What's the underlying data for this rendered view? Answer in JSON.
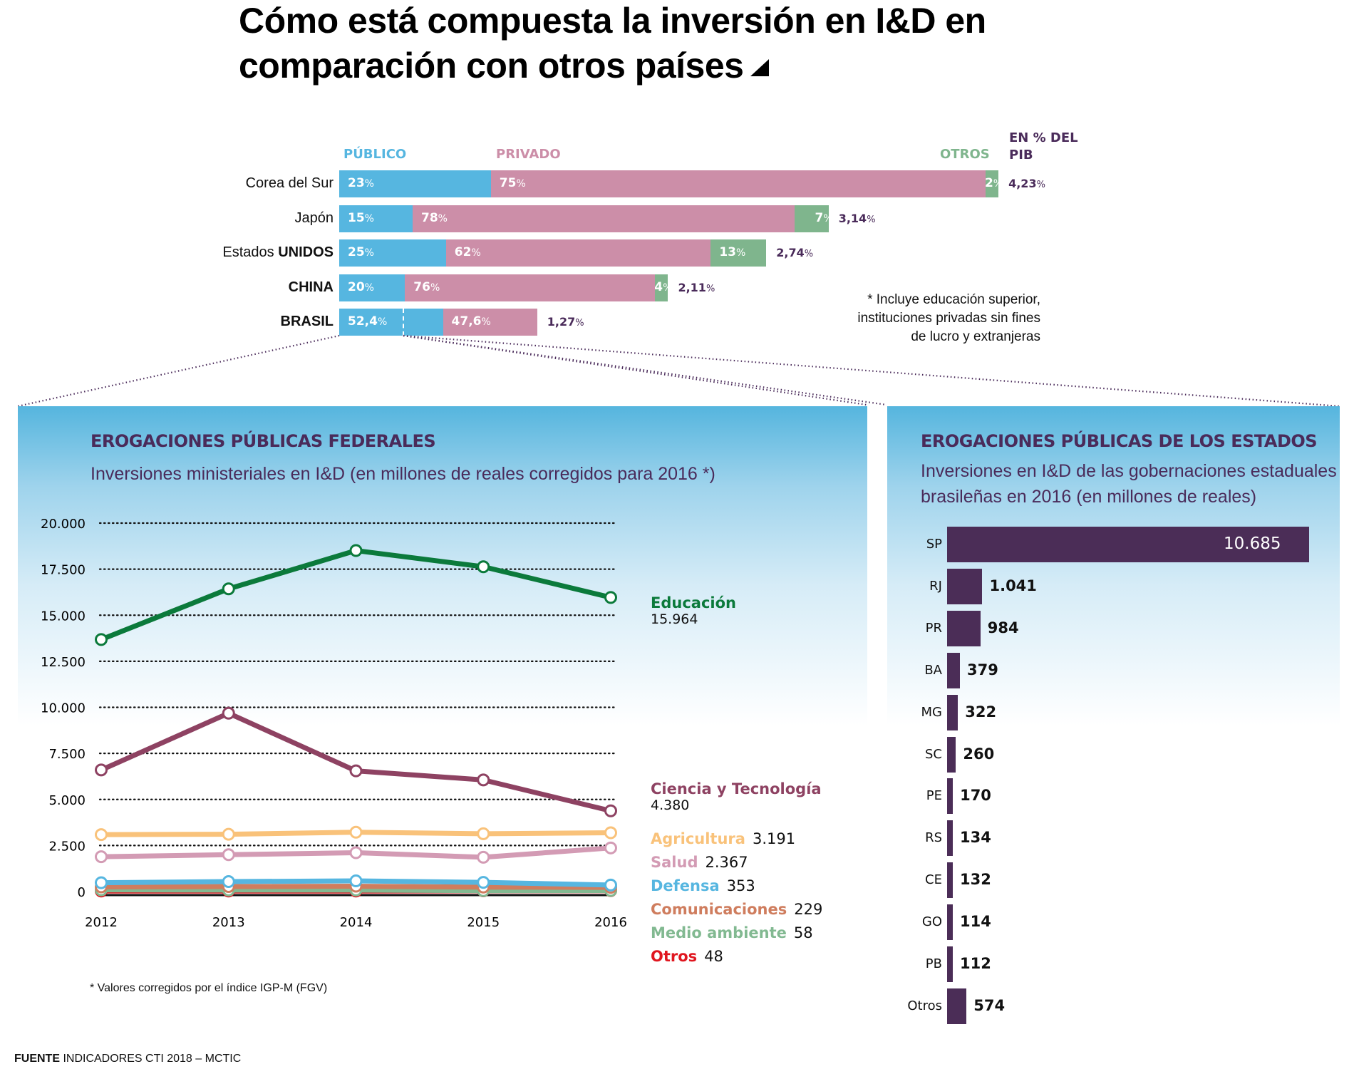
{
  "title": {
    "line1": "Cómo está compuesta la inversión en I&D en",
    "line2": "comparación con otros países"
  },
  "colors": {
    "publico": "#56b6e0",
    "privado": "#cc8ea8",
    "otros": "#7fb58d",
    "pib": "#4a2b5a",
    "state_bar": "#4b2d57",
    "educacion": "#0b7a3b",
    "ciencia": "#8e4262",
    "agricultura": "#f9c27a",
    "salud": "#d39bb4",
    "defensa": "#56b6e0",
    "comunicaciones": "#cf7d5e",
    "medio_ambiente": "#82b991",
    "otros_line": "#e0161f"
  },
  "composition": {
    "legend": {
      "publico": "PÚBLICO",
      "privado": "PRIVADO",
      "otros": "OTROS",
      "pib_line1": "EN % DEL",
      "pib_line2": "PIB"
    },
    "note": [
      "* Incluye educación superior,",
      "instituciones privadas sin fines",
      "de lucro y extranjeras"
    ]
  },
  "chart_data": [
    {
      "type": "bar",
      "stacked": true,
      "orientation": "horizontal",
      "title": "Cómo está compuesta la inversión en I&D en comparación con otros países",
      "categories": [
        "Corea del Sur",
        "Japón",
        "Estados UNIDOS",
        "CHINA",
        "BRASIL"
      ],
      "category_labels": [
        {
          "normal": "Corea del Sur",
          "bold": ""
        },
        {
          "normal": "Japón",
          "bold": ""
        },
        {
          "normal": "Estados ",
          "bold": "UNIDOS"
        },
        {
          "normal": "",
          "bold": "CHINA"
        },
        {
          "normal": "",
          "bold": "BRASIL"
        }
      ],
      "total_unit": "% del PIB",
      "totals": [
        4.23,
        3.14,
        2.74,
        2.11,
        1.27
      ],
      "total_labels": [
        "4,23",
        "3,14",
        "2,74",
        "2,11",
        "1,27"
      ],
      "series": [
        {
          "name": "PÚBLICO",
          "values": [
            23,
            15,
            25,
            20,
            52.4
          ],
          "labels": [
            "23",
            "15",
            "25",
            "20",
            "52,4"
          ]
        },
        {
          "name": "PRIVADO",
          "values": [
            75,
            78,
            62,
            76,
            47.6
          ],
          "labels": [
            "75",
            "78",
            "62",
            "76",
            "47,6"
          ]
        },
        {
          "name": "OTROS",
          "values": [
            2,
            7,
            13,
            4,
            0
          ],
          "labels": [
            "2",
            "7",
            "13",
            "4",
            ""
          ]
        }
      ],
      "legend": "top"
    },
    {
      "type": "line",
      "title": "EROGACIONES PÚBLICAS FEDERALES",
      "subtitle": "Inversiones ministeriales en I&D (en millones de reales corregidos para 2016 *)",
      "x": [
        "2012",
        "2013",
        "2014",
        "2015",
        "2016"
      ],
      "ylim": [
        0,
        20000
      ],
      "yticks": [
        0,
        2500,
        5000,
        7500,
        10000,
        12500,
        15000,
        17500,
        20000
      ],
      "ytick_labels": [
        "0",
        "2.500",
        "5.000",
        "7.500",
        "10.000",
        "12.500",
        "15.000",
        "17.500",
        "20.000"
      ],
      "grid": true,
      "series": [
        {
          "key": "educacion",
          "name": "Educación",
          "values": [
            13680,
            16430,
            18510,
            17630,
            15964
          ],
          "last_label": "15.964"
        },
        {
          "key": "ciencia",
          "name": "Ciencia y Tecnología",
          "values": [
            6600,
            9680,
            6550,
            6060,
            4380
          ],
          "last_label": "4.380"
        },
        {
          "key": "agricultura",
          "name": "Agricultura",
          "values": [
            3090,
            3110,
            3220,
            3140,
            3191
          ],
          "last_label": "3.191"
        },
        {
          "key": "salud",
          "name": "Salud",
          "values": [
            1890,
            2000,
            2110,
            1860,
            2367
          ],
          "last_label": "2.367"
        },
        {
          "key": "defensa",
          "name": "Defensa",
          "values": [
            480,
            540,
            580,
            500,
            353
          ],
          "last_label": "353"
        },
        {
          "key": "comunicaciones",
          "name": "Comunicaciones",
          "values": [
            250,
            270,
            290,
            240,
            229
          ],
          "last_label": "229"
        },
        {
          "key": "medio_ambiente",
          "name": "Medio ambiente",
          "values": [
            90,
            80,
            80,
            50,
            58
          ],
          "last_label": "58"
        },
        {
          "key": "otros_line",
          "name": "Otros",
          "values": [
            30,
            30,
            30,
            40,
            48
          ],
          "last_label": "48"
        }
      ],
      "footnote": "* Valores corregidos por el índice IGP-M (FGV)",
      "legend": "right"
    },
    {
      "type": "bar",
      "orientation": "horizontal",
      "title": "EROGACIONES PÚBLICAS DE LOS ESTADOS",
      "subtitle": [
        "Inversiones en I&D de las gobernaciones estaduales",
        "brasileñas en 2016 (en millones de reales)"
      ],
      "categories": [
        "SP",
        "RJ",
        "PR",
        "BA",
        "MG",
        "SC",
        "PE",
        "RS",
        "CE",
        "GO",
        "PB",
        "Otros"
      ],
      "values": [
        10685,
        1041,
        984,
        379,
        322,
        260,
        170,
        134,
        132,
        114,
        112,
        574
      ],
      "value_labels": [
        "10.685",
        "1.041",
        "984",
        "379",
        "322",
        "260",
        "170",
        "134",
        "132",
        "114",
        "112",
        "574"
      ]
    }
  ],
  "source": {
    "label": "FUENTE",
    "text": " INDICADORES CTI 2018 – MCTIC"
  }
}
